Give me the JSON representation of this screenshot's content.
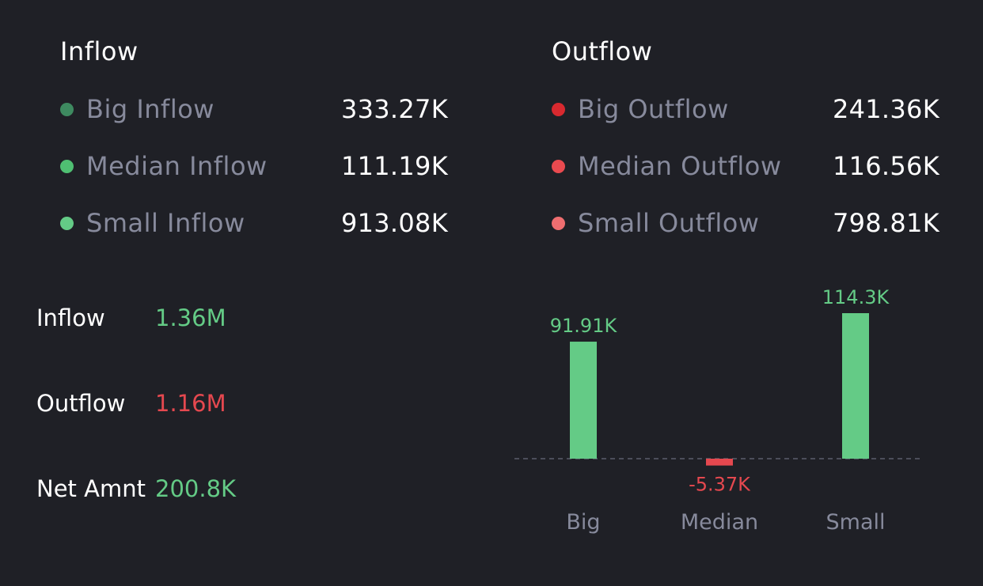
{
  "colors": {
    "background": "#1f2026",
    "positive": "#64cb86",
    "negative": "#e5484f",
    "big_inflow_dot": "#3e8a60",
    "median_inflow_dot": "#4fbf72",
    "small_inflow_dot": "#64cb86",
    "big_outflow_dot": "#d8292f",
    "median_outflow_dot": "#ea4a4f",
    "small_outflow_dot": "#ef6e70",
    "muted_text": "#878a9c",
    "text": "#ffffff"
  },
  "inflow": {
    "title": "Inflow",
    "rows": [
      {
        "label": "Big Inflow",
        "value": "333.27K"
      },
      {
        "label": "Median Inflow",
        "value": "111.19K"
      },
      {
        "label": "Small Inflow",
        "value": "913.08K"
      }
    ]
  },
  "outflow": {
    "title": "Outflow",
    "rows": [
      {
        "label": "Big Outflow",
        "value": "241.36K"
      },
      {
        "label": "Median Outflow",
        "value": "116.56K"
      },
      {
        "label": "Small Outflow",
        "value": "798.81K"
      }
    ]
  },
  "summary": {
    "inflow_label": "Inflow",
    "inflow_value": "1.36M",
    "outflow_label": "Outflow",
    "outflow_value": "1.16M",
    "net_label": "Net Amnt",
    "net_value": "200.8K"
  },
  "chart_data": {
    "type": "bar",
    "title": "",
    "xlabel": "",
    "ylabel": "",
    "categories": [
      "Big",
      "Median",
      "Small"
    ],
    "values": [
      91.91,
      -5.37,
      114.3
    ],
    "value_labels": [
      "91.91K",
      "-5.37K",
      "114.3K"
    ],
    "unit": "K",
    "ylim": [
      -5.37,
      114.3
    ],
    "baseline": 0,
    "grid": false
  }
}
